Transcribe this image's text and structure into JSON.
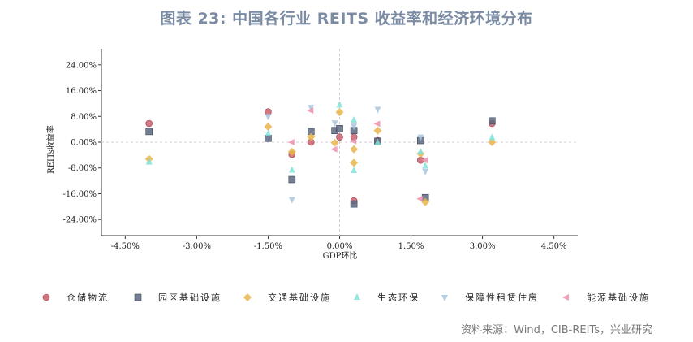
{
  "title": "图表 23: 中国各行业 REITS 收益率和经济环境分布",
  "source": "资料来源：Wind，CIB-REITs，兴业研究",
  "chart_data": {
    "type": "scatter",
    "xlabel": "GDP环比",
    "ylabel": "REITs收益率",
    "xlim": [
      -0.05,
      0.05
    ],
    "ylim": [
      -0.29,
      0.29
    ],
    "xticks": [
      {
        "v": -0.045,
        "label": "-4.50%"
      },
      {
        "v": -0.03,
        "label": "-3.00%"
      },
      {
        "v": -0.015,
        "label": "-1.50%"
      },
      {
        "v": 0.0,
        "label": "0.00%"
      },
      {
        "v": 0.015,
        "label": "1.50%"
      },
      {
        "v": 0.03,
        "label": "3.00%"
      },
      {
        "v": 0.045,
        "label": "4.50%"
      }
    ],
    "yticks": [
      {
        "v": 0.24,
        "label": "24.00%"
      },
      {
        "v": 0.16,
        "label": "16.00%"
      },
      {
        "v": 0.08,
        "label": "8.00%"
      },
      {
        "v": 0.0,
        "label": "0.00%"
      },
      {
        "v": -0.08,
        "label": "-8.00%"
      },
      {
        "v": -0.16,
        "label": "-16.00%"
      },
      {
        "v": -0.24,
        "label": "-24.00%"
      }
    ],
    "series": [
      {
        "name": "仓储物流",
        "marker": "circle",
        "color": "#c9606d",
        "points": [
          [
            -0.04,
            0.058
          ],
          [
            -0.015,
            0.094
          ],
          [
            -0.01,
            -0.038
          ],
          [
            -0.006,
            0.0
          ],
          [
            0.0,
            0.016
          ],
          [
            0.003,
            0.016
          ],
          [
            0.003,
            -0.182
          ],
          [
            0.008,
            0.005
          ],
          [
            0.017,
            -0.056
          ],
          [
            0.032,
            0.058
          ]
        ]
      },
      {
        "name": "园区基础设施",
        "marker": "square",
        "color": "#5c6880",
        "points": [
          [
            -0.04,
            0.033
          ],
          [
            -0.015,
            0.012
          ],
          [
            -0.01,
            -0.116
          ],
          [
            -0.006,
            0.033
          ],
          [
            -0.001,
            0.036
          ],
          [
            0.0,
            0.042
          ],
          [
            0.003,
            0.036
          ],
          [
            0.003,
            -0.192
          ],
          [
            0.008,
            0.003
          ],
          [
            0.017,
            0.005
          ],
          [
            0.018,
            -0.172
          ],
          [
            0.032,
            0.066
          ]
        ]
      },
      {
        "name": "交通基础设施",
        "marker": "diamond",
        "color": "#e8b54c",
        "points": [
          [
            -0.04,
            -0.052
          ],
          [
            -0.015,
            0.048
          ],
          [
            -0.01,
            -0.03
          ],
          [
            -0.006,
            0.016
          ],
          [
            -0.001,
            -0.002
          ],
          [
            0.0,
            0.093
          ],
          [
            0.003,
            -0.022
          ],
          [
            0.003,
            -0.064
          ],
          [
            0.008,
            0.036
          ],
          [
            0.017,
            -0.036
          ],
          [
            0.018,
            -0.186
          ],
          [
            0.032,
            0.0
          ]
        ]
      },
      {
        "name": "生态环保",
        "marker": "triangle-up",
        "color": "#7fe3d8",
        "points": [
          [
            -0.04,
            -0.062
          ],
          [
            -0.015,
            0.026
          ],
          [
            -0.01,
            -0.087
          ],
          [
            0.0,
            0.115
          ],
          [
            0.003,
            0.068
          ],
          [
            0.003,
            -0.088
          ],
          [
            0.008,
            -0.002
          ],
          [
            0.017,
            -0.03
          ],
          [
            0.018,
            -0.074
          ],
          [
            0.032,
            0.014
          ]
        ]
      },
      {
        "name": "保障性租赁住房",
        "marker": "triangle-down",
        "color": "#a8c6dd",
        "points": [
          [
            -0.015,
            0.08
          ],
          [
            -0.01,
            -0.178
          ],
          [
            -0.006,
            0.108
          ],
          [
            -0.001,
            0.06
          ],
          [
            0.003,
            0.05
          ],
          [
            0.008,
            0.102
          ],
          [
            0.017,
            0.016
          ],
          [
            0.018,
            -0.09
          ]
        ]
      },
      {
        "name": "能源基础设施",
        "marker": "triangle-left",
        "color": "#f08fa8",
        "points": [
          [
            -0.01,
            0.0
          ],
          [
            -0.006,
            0.098
          ],
          [
            -0.001,
            -0.022
          ],
          [
            0.003,
            0.003
          ],
          [
            0.008,
            0.057
          ],
          [
            0.017,
            -0.176
          ],
          [
            0.018,
            -0.056
          ]
        ]
      }
    ]
  }
}
